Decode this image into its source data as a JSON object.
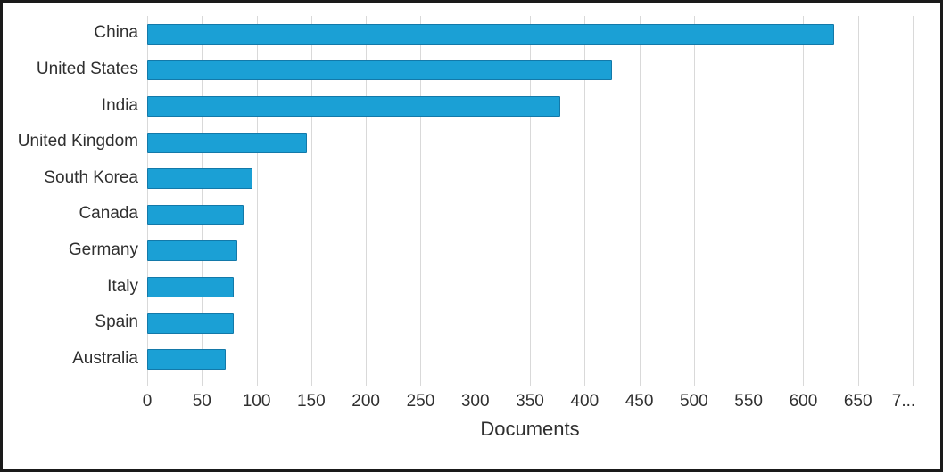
{
  "chart_data": {
    "type": "bar",
    "orientation": "horizontal",
    "title": "",
    "xlabel": "Documents",
    "ylabel": "",
    "categories": [
      "China",
      "United States",
      "India",
      "United Kingdom",
      "South Korea",
      "Canada",
      "Germany",
      "Italy",
      "Spain",
      "Australia"
    ],
    "values": [
      628,
      425,
      378,
      146,
      96,
      88,
      82,
      79,
      79,
      72
    ],
    "xlim": [
      0,
      700
    ],
    "xticks": [
      0,
      50,
      100,
      150,
      200,
      250,
      300,
      350,
      400,
      450,
      500,
      550,
      600,
      650,
      700
    ],
    "xtick_labels": [
      "0",
      "50",
      "100",
      "150",
      "200",
      "250",
      "300",
      "350",
      "400",
      "450",
      "500",
      "550",
      "600",
      "650",
      "7..."
    ],
    "grid": "vertical",
    "legend": "none",
    "bar_color": "#1ba0d5",
    "bar_border_color": "#1379a9",
    "gridline_color": "#d9d9d9",
    "text_color": "#2f2f2f",
    "frame_border_color": "#1a1a1a"
  }
}
